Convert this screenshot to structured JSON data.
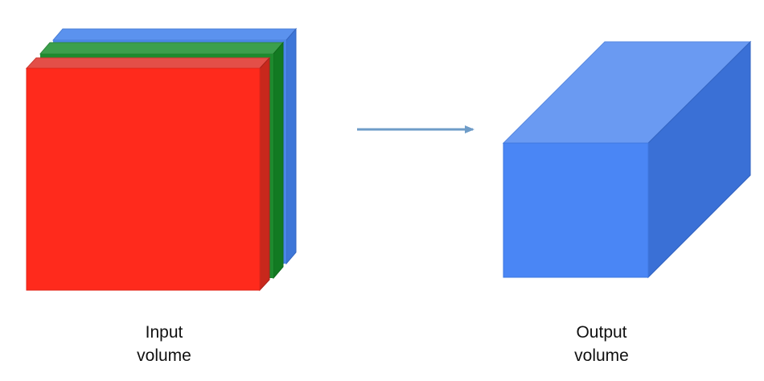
{
  "captions": {
    "input": [
      "Input",
      "volume"
    ],
    "output": [
      "Output",
      "volume"
    ]
  },
  "colors": {
    "red_face": "#ff2a1c",
    "red_top": "#e34f48",
    "red_side": "#c8281c",
    "green_face": "#1e8a2e",
    "green_top": "#3c9f4c",
    "green_side": "#127a22",
    "blue_layer_face": "#4a86e8",
    "blue_layer_top": "#5b92ee",
    "blue_layer_side": "#3d76d8",
    "cuboid_front": "#4a86f5",
    "cuboid_top": "#6a9af2",
    "cuboid_side": "#3a70d6",
    "arrow": "#6e9cc8"
  },
  "icons": {
    "arrow": "right-arrow-icon"
  }
}
